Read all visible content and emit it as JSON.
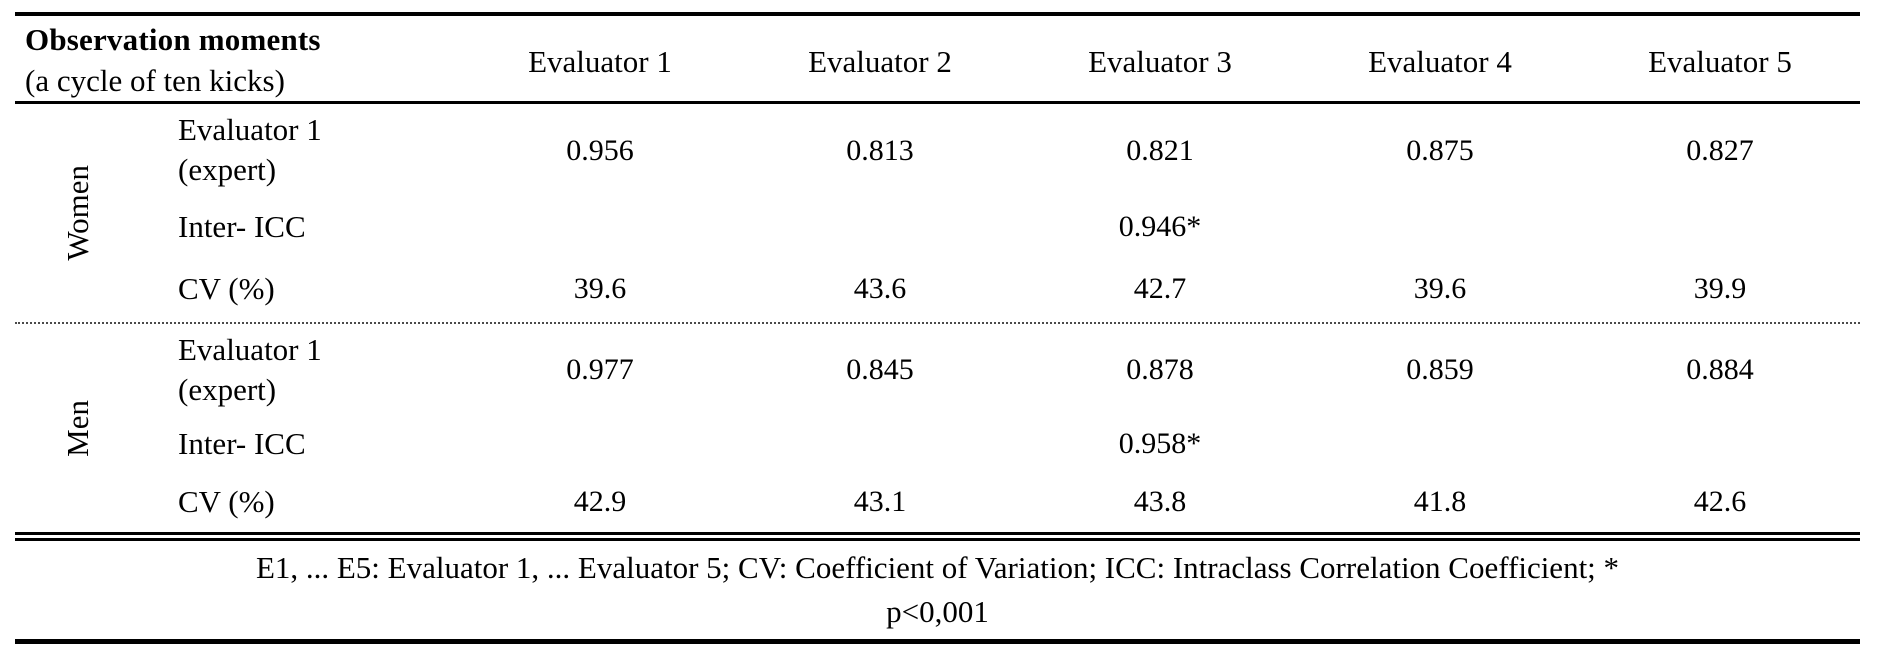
{
  "table": {
    "header": {
      "row_label_line1": "Observation moments",
      "row_label_line2": "(a cycle of ten kicks)",
      "columns": [
        "Evaluator 1",
        "Evaluator 2",
        "Evaluator 3",
        "Evaluator 4",
        "Evaluator 5"
      ]
    },
    "sections": [
      {
        "group_label": "Women",
        "rows": [
          {
            "label_line1": "Evaluator 1",
            "label_line2": "(expert)",
            "values": [
              "0.956",
              "0.813",
              "0.821",
              "0.875",
              "0.827"
            ]
          },
          {
            "label_line1": "Inter- ICC",
            "label_line2": "",
            "values": [
              "",
              "",
              "0.946*",
              "",
              ""
            ]
          },
          {
            "label_line1": "CV (%)",
            "label_line2": "",
            "values": [
              "39.6",
              "43.6",
              "42.7",
              "39.6",
              "39.9"
            ]
          }
        ]
      },
      {
        "group_label": "Men",
        "rows": [
          {
            "label_line1": "Evaluator 1",
            "label_line2": "(expert)",
            "values": [
              "0.977",
              "0.845",
              "0.878",
              "0.859",
              "0.884"
            ]
          },
          {
            "label_line1": "Inter- ICC",
            "label_line2": "",
            "values": [
              "",
              "",
              "0.958*",
              "",
              ""
            ]
          },
          {
            "label_line1": "CV (%)",
            "label_line2": "",
            "values": [
              "42.9",
              "43.1",
              "43.8",
              "41.8",
              "42.6"
            ]
          }
        ]
      }
    ],
    "footnote_line1": "E1, ... E5: Evaluator 1, ... Evaluator 5; CV: Coefficient of Variation; ICC: Intraclass Correlation Coefficient; *",
    "footnote_line2": "p<0,001"
  }
}
